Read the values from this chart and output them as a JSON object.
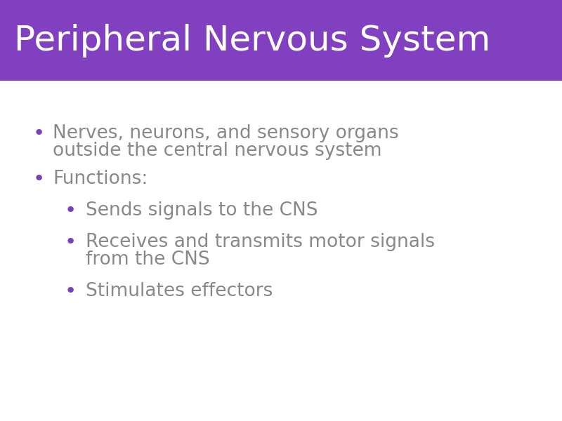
{
  "title": "Peripheral Nervous System",
  "title_bg_color": "#8040C0",
  "title_text_color": "#FFFFFF",
  "title_fontsize": 36,
  "bg_color": "#FFFFFF",
  "bullet_color": "#7B3FBE",
  "text_color": "#888888",
  "bullet1_line1": "Nerves, neurons, and sensory organs",
  "bullet1_line2": "outside the central nervous system",
  "bullet2": "Functions:",
  "sub_bullet1": "Sends signals to the CNS",
  "sub_bullet2_line1": "Receives and transmits motor signals",
  "sub_bullet2_line2": "from the CNS",
  "sub_bullet3": "Stimulates effectors",
  "main_fontsize": 19,
  "sub_fontsize": 19
}
